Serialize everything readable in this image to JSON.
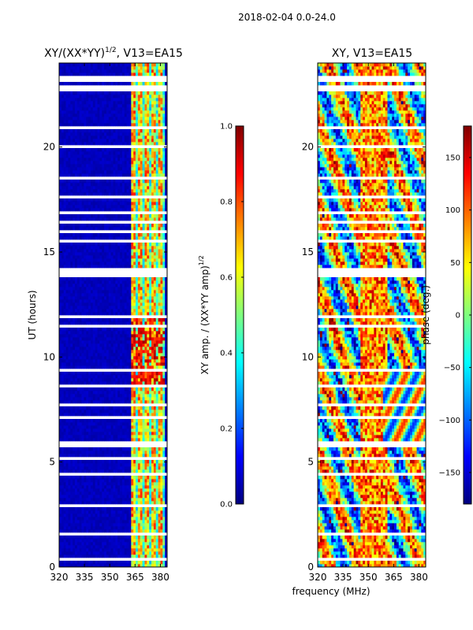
{
  "suptitle": "2018-02-04 0.0-24.0",
  "xlabel": "frequency (MHz)",
  "chart_data": [
    {
      "type": "heatmap",
      "title": "XY/(XX*YY)^1/2, V13=EA15",
      "title_main": "XY/(XX*YY)",
      "title_exp": "1/2",
      "title_tail": ", V13=EA15",
      "xlim": [
        320,
        384
      ],
      "ylim": [
        0,
        24
      ],
      "xticks": [
        320,
        335,
        350,
        365,
        380
      ],
      "yticks": [
        0,
        5,
        10,
        15,
        20
      ],
      "ylabel": "UT (hours)",
      "colorbar": {
        "label": "XY amp. / (XX*YY amp)",
        "label_exp": "1/2",
        "range": [
          0.0,
          1.0
        ],
        "ticks": [
          0.0,
          0.2,
          0.4,
          0.6,
          0.8,
          1.0
        ],
        "tick_labels": [
          "0.0",
          "0.2",
          "0.4",
          "0.6",
          "0.8",
          "1.0"
        ],
        "colormap": "jet"
      }
    },
    {
      "type": "heatmap",
      "title": "XY, V13=EA15",
      "xlim": [
        320,
        384
      ],
      "ylim": [
        0,
        24
      ],
      "xticks": [
        320,
        335,
        350,
        365,
        380
      ],
      "yticks": [
        0,
        5,
        10,
        15,
        20
      ],
      "colorbar": {
        "label": "phase (deg.)",
        "range": [
          -180,
          180
        ],
        "ticks": [
          150,
          100,
          50,
          0,
          -50,
          -100,
          -150
        ],
        "tick_labels": [
          "150",
          "100",
          "50",
          "0",
          "−50",
          "−100",
          "−150"
        ],
        "colormap": "jet"
      }
    }
  ]
}
